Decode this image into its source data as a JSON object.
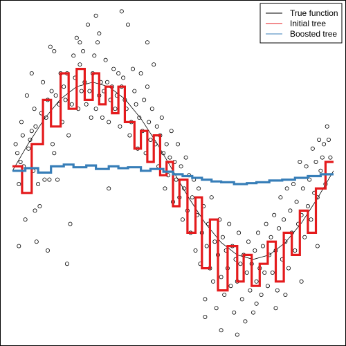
{
  "chart_data": {
    "type": "scatter",
    "title": "",
    "xlabel": "",
    "ylabel": "",
    "xlim": [
      0.0,
      1.0
    ],
    "ylim": [
      -1.9,
      1.85
    ],
    "grid": false,
    "legend": {
      "placement": "top-right",
      "entries": [
        {
          "label": "True function",
          "color": "#000000"
        },
        {
          "label": "Initial tree",
          "color": "#e41a1c"
        },
        {
          "label": "Boosted tree",
          "color": "#377eb8"
        }
      ]
    },
    "points": [
      [
        0.01,
        0.3
      ],
      [
        0.015,
        0.2
      ],
      [
        0.02,
        -0.15
      ],
      [
        0.025,
        0.1
      ],
      [
        0.028,
        0.55
      ],
      [
        0.032,
        0.4
      ],
      [
        0.035,
        0.05
      ],
      [
        0.04,
        -0.55
      ],
      [
        0.045,
        0.85
      ],
      [
        0.05,
        0.25
      ],
      [
        0.055,
        0.35
      ],
      [
        0.06,
        0.45
      ],
      [
        0.065,
        0.0
      ],
      [
        0.068,
        0.7
      ],
      [
        0.072,
        0.5
      ],
      [
        0.075,
        -0.8
      ],
      [
        0.08,
        -0.15
      ],
      [
        0.085,
        -0.4
      ],
      [
        0.09,
        0.65
      ],
      [
        0.095,
        1.0
      ],
      [
        0.1,
        -0.1
      ],
      [
        0.105,
        0.6
      ],
      [
        0.11,
        0.8
      ],
      [
        0.115,
        -0.1
      ],
      [
        0.118,
        1.4
      ],
      [
        0.122,
        0.9
      ],
      [
        0.125,
        0.3
      ],
      [
        0.13,
        0.2
      ],
      [
        0.135,
        0.85
      ],
      [
        0.14,
        -0.1
      ],
      [
        0.145,
        0.75
      ],
      [
        0.15,
        1.1
      ],
      [
        0.155,
        0.55
      ],
      [
        0.16,
        0.95
      ],
      [
        0.165,
        0.8
      ],
      [
        0.17,
        1.1
      ],
      [
        0.175,
        0.4
      ],
      [
        0.18,
        -0.6
      ],
      [
        0.185,
        0.75
      ],
      [
        0.19,
        1.3
      ],
      [
        0.195,
        1.05
      ],
      [
        0.2,
        1.5
      ],
      [
        0.205,
        0.7
      ],
      [
        0.21,
        1.2
      ],
      [
        0.215,
        0.9
      ],
      [
        0.22,
        1.35
      ],
      [
        0.225,
        1.0
      ],
      [
        0.23,
        0.75
      ],
      [
        0.235,
        1.65
      ],
      [
        0.24,
        0.9
      ],
      [
        0.245,
        0.6
      ],
      [
        0.25,
        1.1
      ],
      [
        0.255,
        1.3
      ],
      [
        0.26,
        0.7
      ],
      [
        0.265,
        1.45
      ],
      [
        0.27,
        0.85
      ],
      [
        0.275,
        1.0
      ],
      [
        0.28,
        0.6
      ],
      [
        0.285,
        0.9
      ],
      [
        0.29,
        1.25
      ],
      [
        0.295,
        1.0
      ],
      [
        0.3,
        0.55
      ],
      [
        0.305,
        0.8
      ],
      [
        0.31,
        0.95
      ],
      [
        0.315,
        1.15
      ],
      [
        0.32,
        0.7
      ],
      [
        0.325,
        0.85
      ],
      [
        0.33,
        1.1
      ],
      [
        0.335,
        0.5
      ],
      [
        0.34,
        0.95
      ],
      [
        0.345,
        1.05
      ],
      [
        0.35,
        0.8
      ],
      [
        0.355,
        0.7
      ],
      [
        0.36,
        1.65
      ],
      [
        0.365,
        0.4
      ],
      [
        0.37,
        0.55
      ],
      [
        0.375,
        1.15
      ],
      [
        0.38,
        0.9
      ],
      [
        0.385,
        0.75
      ],
      [
        0.39,
        0.25
      ],
      [
        0.395,
        0.6
      ],
      [
        0.4,
        1.1
      ],
      [
        0.405,
        0.45
      ],
      [
        0.41,
        0.8
      ],
      [
        0.415,
        0.2
      ],
      [
        0.42,
        0.95
      ],
      [
        0.425,
        0.55
      ],
      [
        0.43,
        0.35
      ],
      [
        0.435,
        0.7
      ],
      [
        0.44,
        1.2
      ],
      [
        0.445,
        0.3
      ],
      [
        0.45,
        0.5
      ],
      [
        0.455,
        0.05
      ],
      [
        0.46,
        0.4
      ],
      [
        0.465,
        0.6
      ],
      [
        0.47,
        0.2
      ],
      [
        0.475,
        -0.2
      ],
      [
        0.48,
        0.3
      ],
      [
        0.485,
        -0.05
      ],
      [
        0.49,
        0.15
      ],
      [
        0.495,
        0.45
      ],
      [
        0.5,
        -0.35
      ],
      [
        0.505,
        0.1
      ],
      [
        0.51,
        -0.1
      ],
      [
        0.515,
        0.3
      ],
      [
        0.52,
        -0.3
      ],
      [
        0.525,
        0.05
      ],
      [
        0.53,
        -0.55
      ],
      [
        0.535,
        -0.2
      ],
      [
        0.54,
        0.15
      ],
      [
        0.545,
        -0.45
      ],
      [
        0.55,
        -0.05
      ],
      [
        0.555,
        -0.7
      ],
      [
        0.56,
        -0.3
      ],
      [
        0.565,
        -0.1
      ],
      [
        0.57,
        -0.9
      ],
      [
        0.575,
        -0.5
      ],
      [
        0.58,
        -0.2
      ],
      [
        0.585,
        -1.05
      ],
      [
        0.59,
        -0.7
      ],
      [
        0.595,
        -0.4
      ],
      [
        0.6,
        -1.45
      ],
      [
        0.605,
        -0.85
      ],
      [
        0.61,
        -0.6
      ],
      [
        0.615,
        -1.1
      ],
      [
        0.62,
        -0.3
      ],
      [
        0.625,
        -1.25
      ],
      [
        0.63,
        -0.8
      ],
      [
        0.635,
        -1.55
      ],
      [
        0.64,
        -0.95
      ],
      [
        0.645,
        -0.55
      ],
      [
        0.65,
        -1.2
      ],
      [
        0.655,
        -0.75
      ],
      [
        0.66,
        -1.4
      ],
      [
        0.665,
        -0.9
      ],
      [
        0.67,
        -1.1
      ],
      [
        0.675,
        -0.6
      ],
      [
        0.68,
        -1.3
      ],
      [
        0.685,
        -0.85
      ],
      [
        0.69,
        -1.6
      ],
      [
        0.695,
        -1.0
      ],
      [
        0.7,
        -1.25
      ],
      [
        0.705,
        -0.7
      ],
      [
        0.71,
        -1.05
      ],
      [
        0.715,
        -1.45
      ],
      [
        0.72,
        -0.95
      ],
      [
        0.725,
        -1.7
      ],
      [
        0.73,
        -1.15
      ],
      [
        0.735,
        -0.8
      ],
      [
        0.74,
        -1.35
      ],
      [
        0.745,
        -1.05
      ],
      [
        0.75,
        -1.6
      ],
      [
        0.755,
        -0.9
      ],
      [
        0.76,
        -1.25
      ],
      [
        0.765,
        -0.7
      ],
      [
        0.77,
        -1.1
      ],
      [
        0.775,
        -1.4
      ],
      [
        0.78,
        -0.85
      ],
      [
        0.785,
        -1.15
      ],
      [
        0.79,
        -0.6
      ],
      [
        0.795,
        -1.3
      ],
      [
        0.8,
        -0.95
      ],
      [
        0.805,
        -0.75
      ],
      [
        0.81,
        -1.15
      ],
      [
        0.815,
        -0.5
      ],
      [
        0.82,
        -0.9
      ],
      [
        0.825,
        -1.35
      ],
      [
        0.83,
        -0.65
      ],
      [
        0.835,
        -0.3
      ],
      [
        0.84,
        -1.0
      ],
      [
        0.845,
        -0.55
      ],
      [
        0.85,
        -0.8
      ],
      [
        0.855,
        -0.2
      ],
      [
        0.86,
        -1.1
      ],
      [
        0.865,
        -0.45
      ],
      [
        0.87,
        -0.7
      ],
      [
        0.875,
        -0.15
      ],
      [
        0.88,
        -0.9
      ],
      [
        0.885,
        -0.35
      ],
      [
        0.89,
        -0.6
      ],
      [
        0.895,
        0.1
      ],
      [
        0.9,
        -0.5
      ],
      [
        0.905,
        -0.2
      ],
      [
        0.91,
        -0.75
      ],
      [
        0.915,
        0.05
      ],
      [
        0.92,
        -0.4
      ],
      [
        0.925,
        -0.1
      ],
      [
        0.93,
        -0.55
      ],
      [
        0.935,
        0.25
      ],
      [
        0.94,
        -0.25
      ],
      [
        0.945,
        0.1
      ],
      [
        0.95,
        -0.3
      ],
      [
        0.955,
        0.35
      ],
      [
        0.96,
        0.0
      ],
      [
        0.965,
        0.15
      ],
      [
        0.97,
        0.3
      ],
      [
        0.975,
        -0.15
      ],
      [
        0.98,
        0.5
      ],
      [
        0.985,
        0.35
      ],
      [
        0.99,
        0.15
      ],
      [
        0.02,
        -0.85
      ],
      [
        0.06,
        1.1
      ],
      [
        0.11,
        -0.9
      ],
      [
        0.17,
        -1.05
      ],
      [
        0.21,
        1.45
      ],
      [
        0.26,
        1.75
      ],
      [
        0.34,
        1.8
      ],
      [
        0.6,
        -1.65
      ],
      [
        0.65,
        -1.8
      ],
      [
        0.7,
        -1.85
      ],
      [
        0.76,
        -1.5
      ],
      [
        0.82,
        -1.55
      ],
      [
        0.85,
        -1.4
      ],
      [
        0.9,
        -1.25
      ],
      [
        0.95,
        -0.85
      ],
      [
        0.07,
        -0.45
      ],
      [
        0.13,
        1.35
      ],
      [
        0.27,
        1.55
      ],
      [
        0.3,
        -0.2
      ],
      [
        0.42,
        1.45
      ]
    ],
    "true_function": {
      "x": [
        0.0,
        0.05,
        0.1,
        0.15,
        0.2,
        0.25,
        0.3,
        0.35,
        0.4,
        0.45,
        0.5,
        0.55,
        0.6,
        0.65,
        0.7,
        0.75,
        0.8,
        0.85,
        0.9,
        0.95,
        1.0
      ],
      "y": [
        0.0,
        0.31,
        0.59,
        0.81,
        0.95,
        1.0,
        0.95,
        0.81,
        0.59,
        0.31,
        0.0,
        -0.31,
        -0.59,
        -0.81,
        -0.95,
        -1.0,
        -0.95,
        -0.81,
        -0.59,
        -0.31,
        0.0
      ]
    },
    "initial_tree": {
      "x": [
        0.0,
        0.03,
        0.06,
        0.095,
        0.12,
        0.15,
        0.175,
        0.2,
        0.225,
        0.25,
        0.27,
        0.29,
        0.31,
        0.33,
        0.35,
        0.38,
        0.4,
        0.42,
        0.44,
        0.46,
        0.48,
        0.5,
        0.52,
        0.545,
        0.57,
        0.59,
        0.615,
        0.64,
        0.67,
        0.7,
        0.72,
        0.745,
        0.77,
        0.795,
        0.82,
        0.845,
        0.87,
        0.895,
        0.92,
        0.945,
        0.975,
        1.0
      ],
      "y": [
        0.05,
        -0.25,
        0.3,
        0.8,
        0.5,
        1.1,
        0.7,
        1.15,
        0.8,
        1.1,
        0.75,
        0.95,
        0.65,
        0.95,
        0.55,
        0.25,
        0.45,
        0.1,
        0.4,
        -0.05,
        0.1,
        -0.4,
        -0.1,
        -0.7,
        -0.3,
        -1.1,
        -0.55,
        -1.35,
        -0.85,
        -1.25,
        -0.95,
        -1.3,
        -1.05,
        -0.8,
        -1.25,
        -0.7,
        -0.95,
        -0.45,
        -0.7,
        -0.2,
        0.1,
        0.1
      ]
    },
    "boosted_tree": {
      "x": [
        0.0,
        0.04,
        0.08,
        0.12,
        0.16,
        0.19,
        0.23,
        0.26,
        0.3,
        0.33,
        0.36,
        0.4,
        0.43,
        0.47,
        0.5,
        0.53,
        0.56,
        0.59,
        0.62,
        0.65,
        0.69,
        0.73,
        0.76,
        0.8,
        0.84,
        0.88,
        0.92,
        0.96,
        1.0
      ],
      "y": [
        0.0,
        0.03,
        -0.02,
        0.05,
        0.07,
        0.04,
        0.06,
        0.02,
        0.05,
        0.03,
        0.04,
        0.0,
        0.02,
        -0.01,
        -0.04,
        -0.06,
        -0.08,
        -0.1,
        -0.12,
        -0.13,
        -0.15,
        -0.14,
        -0.13,
        -0.11,
        -0.1,
        -0.08,
        -0.06,
        -0.04,
        -0.03
      ]
    }
  }
}
